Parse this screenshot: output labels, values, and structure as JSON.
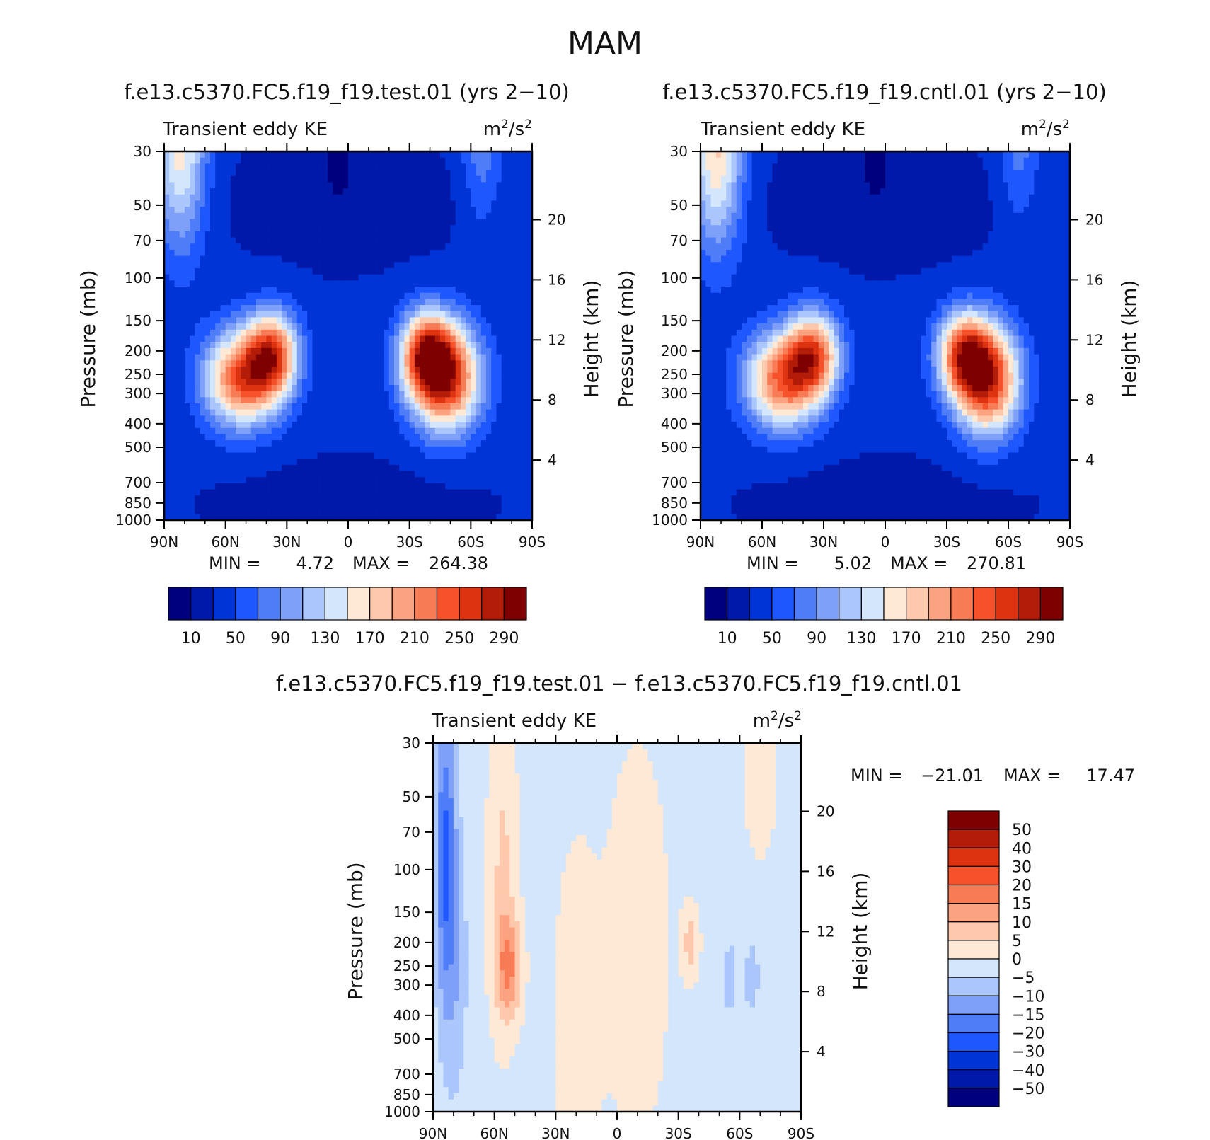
{
  "figure": {
    "title": "MAM"
  },
  "chart_data": [
    {
      "type": "heatmap",
      "title": "f.e13.c5370.FC5.f19_f19.test.01 (yrs 2−10)",
      "subtitle_left": "Transient eddy KE",
      "units": "m²/s²",
      "units_base": "m",
      "units_mid": "/s",
      "units_sup": "2",
      "ylabel": "Pressure (mb)",
      "ylabel_right": "Height (km)",
      "xlim": [
        90,
        -90
      ],
      "x_ticks": [
        90,
        60,
        30,
        0,
        -30,
        -60,
        -90
      ],
      "x_tick_labels": [
        "90N",
        "60N",
        "30N",
        "0",
        "30S",
        "60S",
        "90S"
      ],
      "y_scale": "log",
      "ylim": [
        1000,
        30
      ],
      "y_ticks": [
        30,
        50,
        70,
        100,
        150,
        200,
        250,
        300,
        400,
        500,
        700,
        850,
        1000
      ],
      "y_tick_labels": [
        "30",
        "50",
        "70",
        "100",
        "150",
        "200",
        "250",
        "300",
        "400",
        "500",
        "700",
        "850",
        "1000"
      ],
      "height_ticks_km": [
        4,
        8,
        12,
        16,
        20
      ],
      "height_tick_labels": [
        "4",
        "8",
        "12",
        "16",
        "20"
      ],
      "min": 4.72,
      "max": 264.38,
      "min_label": "MIN =",
      "min_value": "4.72",
      "max_label": "MAX =",
      "max_value": "264.38",
      "features": [
        {
          "lat": 52,
          "p": 260,
          "value": 235,
          "sx": 13,
          "sy": 0.32
        },
        {
          "lat": 37,
          "p": 205,
          "value": 215,
          "sx": 9,
          "sy": 0.28
        },
        {
          "lat": -48,
          "p": 260,
          "value": 255,
          "sx": 12,
          "sy": 0.36
        },
        {
          "lat": -38,
          "p": 205,
          "value": 220,
          "sx": 9,
          "sy": 0.28
        },
        {
          "lat": 82,
          "p": 30,
          "value": 160,
          "sx": 9,
          "sy": 0.65
        },
        {
          "lat": -65,
          "p": 30,
          "value": 85,
          "sx": 7,
          "sy": 0.5
        }
      ],
      "background": 32,
      "lowband": {
        "p": 48,
        "value": 12
      },
      "minimum": {
        "lat": 5,
        "p": 30,
        "value": 5
      }
    },
    {
      "type": "heatmap",
      "title": "f.e13.c5370.FC5.f19_f19.cntl.01 (yrs 2−10)",
      "subtitle_left": "Transient eddy KE",
      "units": "m²/s²",
      "units_base": "m",
      "units_mid": "/s",
      "units_sup": "2",
      "ylabel": "Pressure (mb)",
      "ylabel_right": "Height (km)",
      "xlim": [
        90,
        -90
      ],
      "x_ticks": [
        90,
        60,
        30,
        0,
        -30,
        -60,
        -90
      ],
      "x_tick_labels": [
        "90N",
        "60N",
        "30N",
        "0",
        "30S",
        "60S",
        "90S"
      ],
      "y_scale": "log",
      "ylim": [
        1000,
        30
      ],
      "y_ticks": [
        30,
        50,
        70,
        100,
        150,
        200,
        250,
        300,
        400,
        500,
        700,
        850,
        1000
      ],
      "y_tick_labels": [
        "30",
        "50",
        "70",
        "100",
        "150",
        "200",
        "250",
        "300",
        "400",
        "500",
        "700",
        "850",
        "1000"
      ],
      "height_ticks_km": [
        4,
        8,
        12,
        16,
        20
      ],
      "height_tick_labels": [
        "4",
        "8",
        "12",
        "16",
        "20"
      ],
      "min": 5.02,
      "max": 270.81,
      "min_label": "MIN =",
      "min_value": "5.02",
      "max_label": "MAX =",
      "max_value": "270.81",
      "features": [
        {
          "lat": 50,
          "p": 265,
          "value": 225,
          "sx": 13,
          "sy": 0.32
        },
        {
          "lat": 35,
          "p": 205,
          "value": 210,
          "sx": 9,
          "sy": 0.28
        },
        {
          "lat": -50,
          "p": 265,
          "value": 262,
          "sx": 11,
          "sy": 0.36
        },
        {
          "lat": -38,
          "p": 205,
          "value": 215,
          "sx": 9,
          "sy": 0.28
        },
        {
          "lat": 82,
          "p": 30,
          "value": 175,
          "sx": 9,
          "sy": 0.65
        },
        {
          "lat": -65,
          "p": 30,
          "value": 80,
          "sx": 7,
          "sy": 0.5
        }
      ],
      "background": 32,
      "lowband": {
        "p": 48,
        "value": 12
      },
      "minimum": {
        "lat": 5,
        "p": 30,
        "value": 5
      }
    },
    {
      "type": "heatmap",
      "title": "f.e13.c5370.FC5.f19_f19.test.01 − f.e13.c5370.FC5.f19_f19.cntl.01",
      "subtitle_left": "Transient eddy KE",
      "units": "m²/s²",
      "units_base": "m",
      "units_mid": "/s",
      "units_sup": "2",
      "ylabel": "Pressure (mb)",
      "ylabel_right": "Height (km)",
      "xlim": [
        90,
        -90
      ],
      "x_ticks": [
        90,
        60,
        30,
        0,
        -30,
        -60,
        -90
      ],
      "x_tick_labels": [
        "90N",
        "60N",
        "30N",
        "0",
        "30S",
        "60S",
        "90S"
      ],
      "y_scale": "log",
      "ylim": [
        1000,
        30
      ],
      "y_ticks": [
        30,
        50,
        70,
        100,
        150,
        200,
        250,
        300,
        400,
        500,
        700,
        850,
        1000
      ],
      "y_tick_labels": [
        "30",
        "50",
        "70",
        "100",
        "150",
        "200",
        "250",
        "300",
        "400",
        "500",
        "700",
        "850",
        "1000"
      ],
      "height_ticks_km": [
        4,
        8,
        12,
        16,
        20
      ],
      "height_tick_labels": [
        "4",
        "8",
        "12",
        "16",
        "20"
      ],
      "min": -21.01,
      "max": 17.47,
      "min_label": "MIN =",
      "min_value": "−21.01",
      "max_label": "MAX =",
      "max_value": "17.47",
      "features": [
        {
          "lat": 84,
          "p": 80,
          "value": -20,
          "sx": 3.5,
          "sy": 0.9
        },
        {
          "lat": 80,
          "p": 250,
          "value": -9,
          "sx": 5,
          "sy": 0.9
        },
        {
          "lat": 53,
          "p": 250,
          "value": 13,
          "sx": 4.5,
          "sy": 0.35
        },
        {
          "lat": 56,
          "p": 100,
          "value": 6,
          "sx": 5,
          "sy": 1.1
        },
        {
          "lat": -36,
          "p": 200,
          "value": 7,
          "sx": 3,
          "sy": 0.25
        },
        {
          "lat": -55,
          "p": 280,
          "value": -7,
          "sx": 3,
          "sy": 0.3
        },
        {
          "lat": -66,
          "p": 280,
          "value": -7,
          "sx": 3,
          "sy": 0.3
        },
        {
          "lat": 20,
          "p": 400,
          "value": 3,
          "sx": 8,
          "sy": 1.2
        },
        {
          "lat": -10,
          "p": 200,
          "value": 2.5,
          "sx": 12,
          "sy": 1.5
        },
        {
          "lat": -70,
          "p": 40,
          "value": 3,
          "sx": 6,
          "sy": 0.6
        }
      ],
      "background": -2
    }
  ],
  "colorbars": [
    {
      "colors": [
        "#00007f",
        "#0019a8",
        "#0034d6",
        "#1f57ff",
        "#4f7df8",
        "#7fa0f8",
        "#aac6fb",
        "#d4e6fb",
        "#fee8d6",
        "#fdc8ab",
        "#fba381",
        "#f77c56",
        "#f5522c",
        "#dd3311",
        "#b41c0a",
        "#7f0000"
      ],
      "bounds": [
        -10,
        10,
        30,
        50,
        70,
        90,
        110,
        130,
        150,
        170,
        190,
        210,
        230,
        250,
        270,
        290,
        310
      ],
      "labels": [
        "10",
        "50",
        "90",
        "130",
        "170",
        "210",
        "250",
        "290"
      ],
      "label_levels": [
        10,
        50,
        90,
        130,
        170,
        210,
        250,
        290
      ]
    },
    {
      "colors": [
        "#00007f",
        "#0019a8",
        "#0034d6",
        "#1f57ff",
        "#4f7df8",
        "#7fa0f8",
        "#aac6fb",
        "#d4e6fb",
        "#fee8d6",
        "#fdc8ab",
        "#fba381",
        "#f77c56",
        "#f5522c",
        "#dd3311",
        "#b41c0a",
        "#7f0000"
      ],
      "bounds": [
        -10,
        10,
        30,
        50,
        70,
        90,
        110,
        130,
        150,
        170,
        190,
        210,
        230,
        250,
        270,
        290,
        310
      ],
      "labels": [
        "10",
        "50",
        "90",
        "130",
        "170",
        "210",
        "250",
        "290"
      ],
      "label_levels": [
        10,
        50,
        90,
        130,
        170,
        210,
        250,
        290
      ]
    },
    {
      "colors": [
        "#00007f",
        "#0019a8",
        "#0034d6",
        "#1f57ff",
        "#4f7df8",
        "#7fa0f8",
        "#aac6fb",
        "#d4e6fb",
        "#fee8d6",
        "#fdc8ab",
        "#fba381",
        "#f77c56",
        "#f5522c",
        "#dd3311",
        "#b41c0a",
        "#7f0000"
      ],
      "bounds": [
        -80,
        -50,
        -40,
        -30,
        -20,
        -15,
        -10,
        -5,
        0,
        5,
        10,
        15,
        20,
        30,
        40,
        50,
        80
      ],
      "labels": [
        "50",
        "40",
        "30",
        "20",
        "15",
        "10",
        "5",
        "0",
        "−5",
        "−10",
        "−15",
        "−20",
        "−30",
        "−40",
        "−50"
      ],
      "label_levels": [
        50,
        40,
        30,
        20,
        15,
        10,
        5,
        0,
        -5,
        -10,
        -15,
        -20,
        -30,
        -40,
        -50
      ]
    }
  ]
}
